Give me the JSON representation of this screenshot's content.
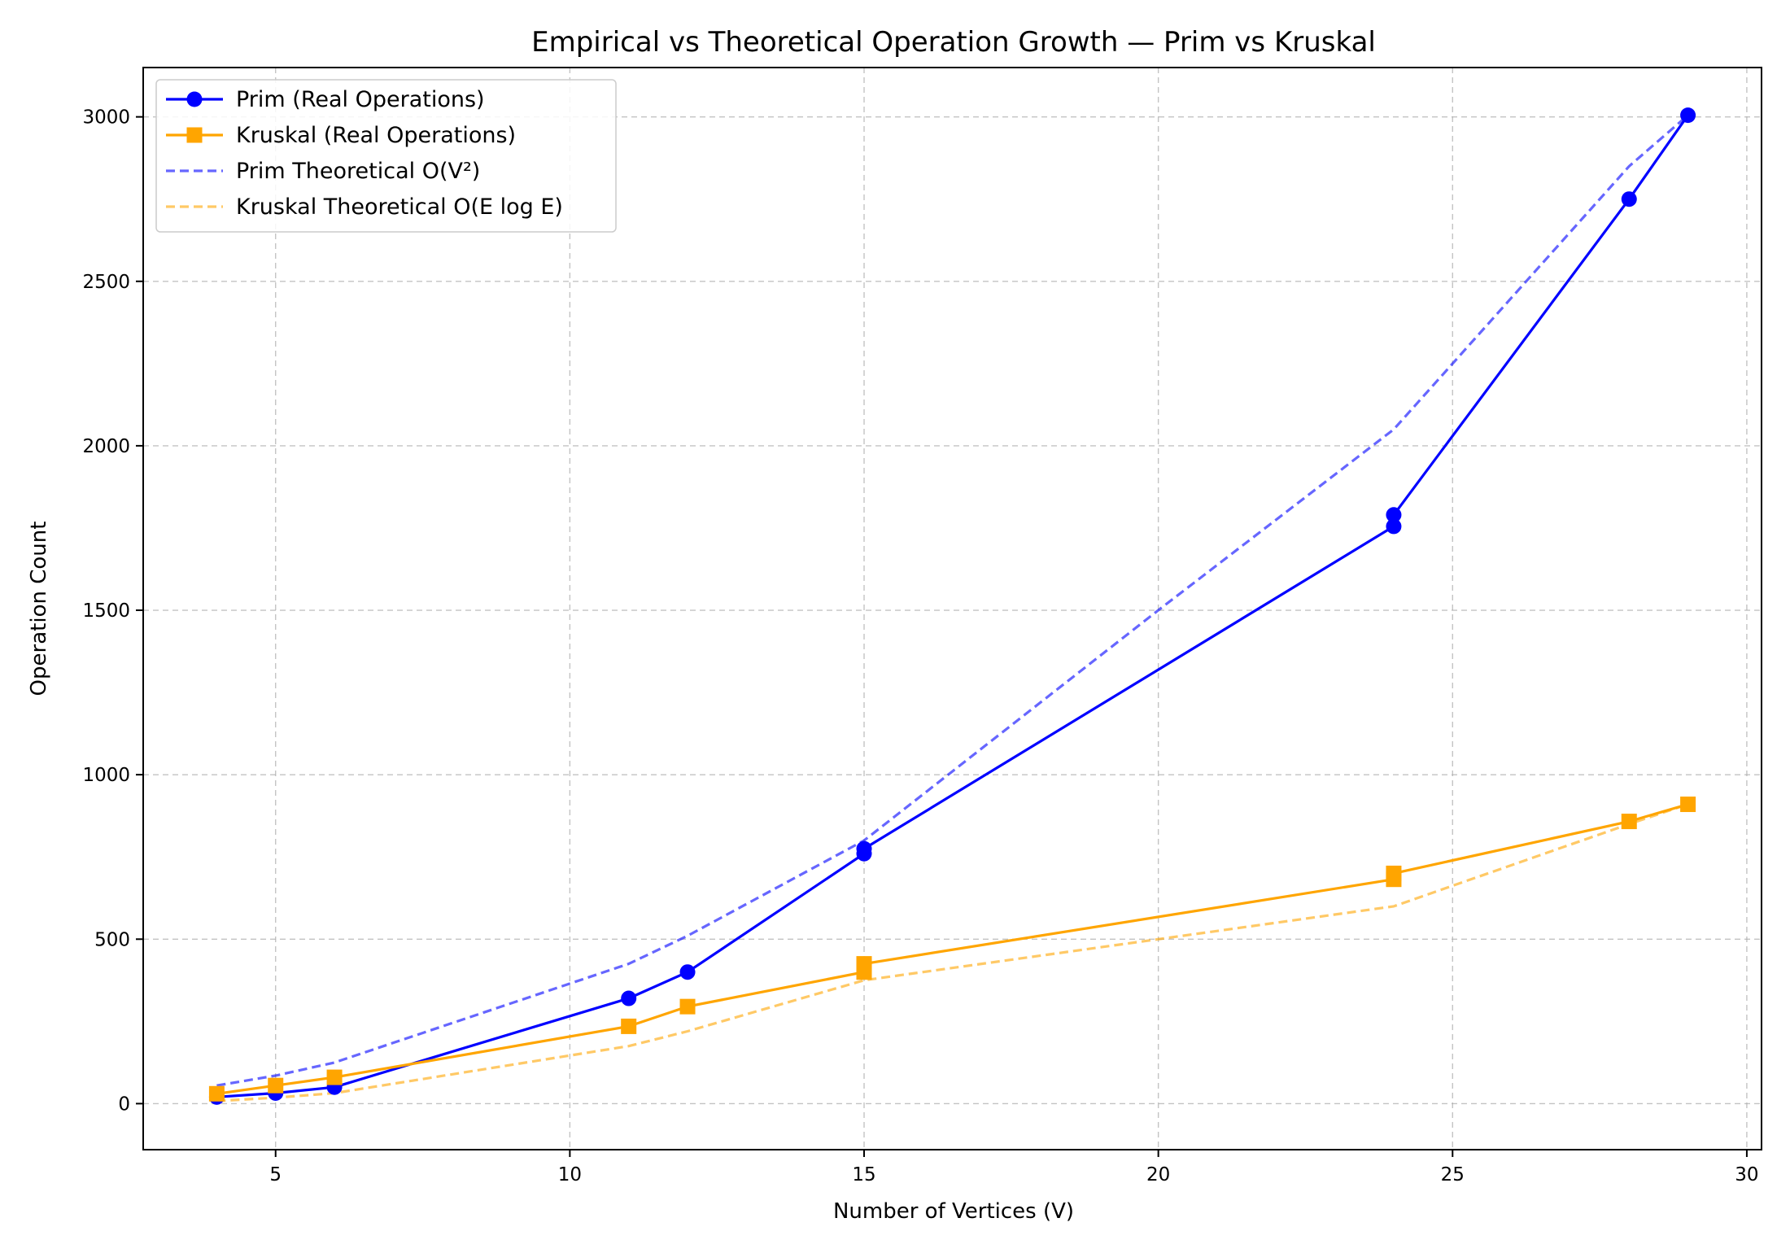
{
  "chart_data": {
    "type": "line",
    "title": "Empirical vs Theoretical Operation Growth — Prim vs Kruskal",
    "xlabel": "Number of Vertices (V)",
    "ylabel": "Operation Count",
    "xlim": [
      2.75,
      30.25
    ],
    "ylim": [
      -140,
      3150
    ],
    "xticks": [
      5,
      10,
      15,
      20,
      25,
      30
    ],
    "yticks": [
      0,
      500,
      1000,
      1500,
      2000,
      2500,
      3000
    ],
    "grid": true,
    "legend_position": "top-left",
    "series": [
      {
        "name": "Prim (Real Operations)",
        "color": "#0000ff",
        "style": "solid",
        "marker": "circle",
        "opacity": 1,
        "points": [
          [
            4,
            20
          ],
          [
            5,
            32
          ],
          [
            6,
            50
          ],
          [
            11,
            320
          ],
          [
            12,
            400
          ],
          [
            15,
            760
          ],
          [
            15,
            775
          ],
          [
            24,
            1755
          ],
          [
            24,
            1790
          ],
          [
            28,
            2750
          ],
          [
            29,
            3005
          ]
        ]
      },
      {
        "name": "Kruskal (Real Operations)",
        "color": "#ffa500",
        "style": "solid",
        "marker": "square",
        "opacity": 1,
        "points": [
          [
            4,
            30
          ],
          [
            5,
            55
          ],
          [
            6,
            80
          ],
          [
            11,
            235
          ],
          [
            12,
            295
          ],
          [
            15,
            400
          ],
          [
            15,
            425
          ],
          [
            24,
            682
          ],
          [
            24,
            700
          ],
          [
            28,
            858
          ],
          [
            29,
            910
          ]
        ]
      },
      {
        "name": "Prim Theoretical O(V²)",
        "color": "#0000ff",
        "style": "dashed",
        "marker": "none",
        "opacity": 0.6,
        "points": [
          [
            4,
            55
          ],
          [
            5,
            85
          ],
          [
            6,
            125
          ],
          [
            11,
            425
          ],
          [
            12,
            510
          ],
          [
            15,
            800
          ],
          [
            20,
            1500
          ],
          [
            24,
            2050
          ],
          [
            28,
            2850
          ],
          [
            29,
            3005
          ]
        ]
      },
      {
        "name": "Kruskal Theoretical O(E log E)",
        "color": "#ffa500",
        "style": "dashed",
        "marker": "none",
        "opacity": 0.6,
        "points": [
          [
            4,
            8
          ],
          [
            5,
            18
          ],
          [
            6,
            32
          ],
          [
            11,
            175
          ],
          [
            12,
            220
          ],
          [
            15,
            375
          ],
          [
            20,
            500
          ],
          [
            24,
            600
          ],
          [
            28,
            850
          ],
          [
            29,
            910
          ]
        ]
      }
    ]
  }
}
